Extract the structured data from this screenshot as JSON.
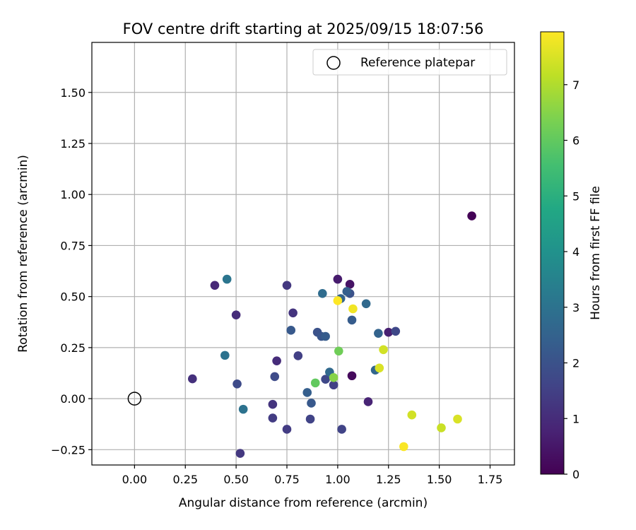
{
  "chart_data": {
    "type": "scatter",
    "title": "FOV centre drift starting at 2025/09/15 18:07:56",
    "xlabel": "Angular distance from reference (arcmin)",
    "ylabel": "Rotation from reference (arcmin)",
    "xlim": [
      -0.21,
      1.87
    ],
    "ylim": [
      -0.325,
      1.745
    ],
    "xticks": [
      0.0,
      0.25,
      0.5,
      0.75,
      1.0,
      1.25,
      1.5,
      1.75
    ],
    "xtick_labels": [
      "0.00",
      "0.25",
      "0.50",
      "0.75",
      "1.00",
      "1.25",
      "1.50",
      "1.75"
    ],
    "yticks": [
      -0.25,
      0.0,
      0.25,
      0.5,
      0.75,
      1.0,
      1.25,
      1.5
    ],
    "ytick_labels": [
      "−0.25",
      "0.00",
      "0.25",
      "0.50",
      "0.75",
      "1.00",
      "1.25",
      "1.50"
    ],
    "grid": true,
    "legend": {
      "position": "top-right",
      "entries": [
        "Reference platepar"
      ]
    },
    "reference_point": {
      "x": 0.0,
      "y": 0.0
    },
    "colorbar": {
      "label": "Hours from first FF file",
      "min": 0,
      "max": 7.95,
      "ticks": [
        0,
        1,
        2,
        3,
        4,
        5,
        6,
        7
      ],
      "tick_labels": [
        "0",
        "1",
        "2",
        "3",
        "4",
        "5",
        "6",
        "7"
      ],
      "colormap": "viridis"
    },
    "points": [
      {
        "x": 1.66,
        "y": 0.895,
        "hours": 0.05
      },
      {
        "x": 1.07,
        "y": 0.112,
        "hours": 0.2
      },
      {
        "x": 1.06,
        "y": 0.56,
        "hours": 0.4
      },
      {
        "x": 1.0,
        "y": 0.585,
        "hours": 0.6
      },
      {
        "x": 1.25,
        "y": 0.325,
        "hours": 0.7
      },
      {
        "x": 1.15,
        "y": -0.015,
        "hours": 0.8
      },
      {
        "x": 0.395,
        "y": 0.555,
        "hours": 0.9
      },
      {
        "x": 0.5,
        "y": 0.41,
        "hours": 1.0
      },
      {
        "x": 0.285,
        "y": 0.097,
        "hours": 1.1
      },
      {
        "x": 0.7,
        "y": 0.185,
        "hours": 1.0
      },
      {
        "x": 0.68,
        "y": -0.028,
        "hours": 1.2
      },
      {
        "x": 0.75,
        "y": 0.555,
        "hours": 1.3
      },
      {
        "x": 0.78,
        "y": 0.42,
        "hours": 1.2
      },
      {
        "x": 0.52,
        "y": -0.268,
        "hours": 1.3
      },
      {
        "x": 0.68,
        "y": -0.095,
        "hours": 1.4
      },
      {
        "x": 0.75,
        "y": -0.15,
        "hours": 1.4
      },
      {
        "x": 0.805,
        "y": 0.21,
        "hours": 1.5
      },
      {
        "x": 0.98,
        "y": 0.067,
        "hours": 1.5
      },
      {
        "x": 1.02,
        "y": -0.15,
        "hours": 1.6
      },
      {
        "x": 0.865,
        "y": -0.1,
        "hours": 1.6
      },
      {
        "x": 1.285,
        "y": 0.33,
        "hours": 1.7
      },
      {
        "x": 0.94,
        "y": 0.095,
        "hours": 1.7
      },
      {
        "x": 0.505,
        "y": 0.072,
        "hours": 1.8
      },
      {
        "x": 0.69,
        "y": 0.108,
        "hours": 1.8
      },
      {
        "x": 0.9,
        "y": 0.325,
        "hours": 2.0
      },
      {
        "x": 1.06,
        "y": 0.515,
        "hours": 2.0
      },
      {
        "x": 0.92,
        "y": 0.305,
        "hours": 2.1
      },
      {
        "x": 0.87,
        "y": -0.022,
        "hours": 2.2
      },
      {
        "x": 0.77,
        "y": 0.335,
        "hours": 2.2
      },
      {
        "x": 0.94,
        "y": 0.305,
        "hours": 2.3
      },
      {
        "x": 1.07,
        "y": 0.385,
        "hours": 2.3
      },
      {
        "x": 1.045,
        "y": 0.525,
        "hours": 2.4
      },
      {
        "x": 0.85,
        "y": 0.03,
        "hours": 2.4
      },
      {
        "x": 1.2,
        "y": 0.32,
        "hours": 2.5
      },
      {
        "x": 1.015,
        "y": 0.49,
        "hours": 2.5
      },
      {
        "x": 1.185,
        "y": 0.14,
        "hours": 2.6
      },
      {
        "x": 0.96,
        "y": 0.13,
        "hours": 2.7
      },
      {
        "x": 1.14,
        "y": 0.465,
        "hours": 2.7
      },
      {
        "x": 0.925,
        "y": 0.515,
        "hours": 2.8
      },
      {
        "x": 0.535,
        "y": -0.052,
        "hours": 3.0
      },
      {
        "x": 0.445,
        "y": 0.212,
        "hours": 3.0
      },
      {
        "x": 0.455,
        "y": 0.585,
        "hours": 3.1
      },
      {
        "x": 0.89,
        "y": 0.077,
        "hours": 6.0
      },
      {
        "x": 1.005,
        "y": 0.233,
        "hours": 6.2
      },
      {
        "x": 0.98,
        "y": 0.103,
        "hours": 6.5
      },
      {
        "x": 1.205,
        "y": 0.15,
        "hours": 7.5
      },
      {
        "x": 1.225,
        "y": 0.24,
        "hours": 7.4
      },
      {
        "x": 1.365,
        "y": -0.08,
        "hours": 7.4
      },
      {
        "x": 1.51,
        "y": -0.143,
        "hours": 7.3
      },
      {
        "x": 1.59,
        "y": -0.1,
        "hours": 7.5
      },
      {
        "x": 1.075,
        "y": 0.44,
        "hours": 7.8
      },
      {
        "x": 1.0,
        "y": 0.48,
        "hours": 7.95
      },
      {
        "x": 1.325,
        "y": -0.235,
        "hours": 7.9
      }
    ]
  }
}
